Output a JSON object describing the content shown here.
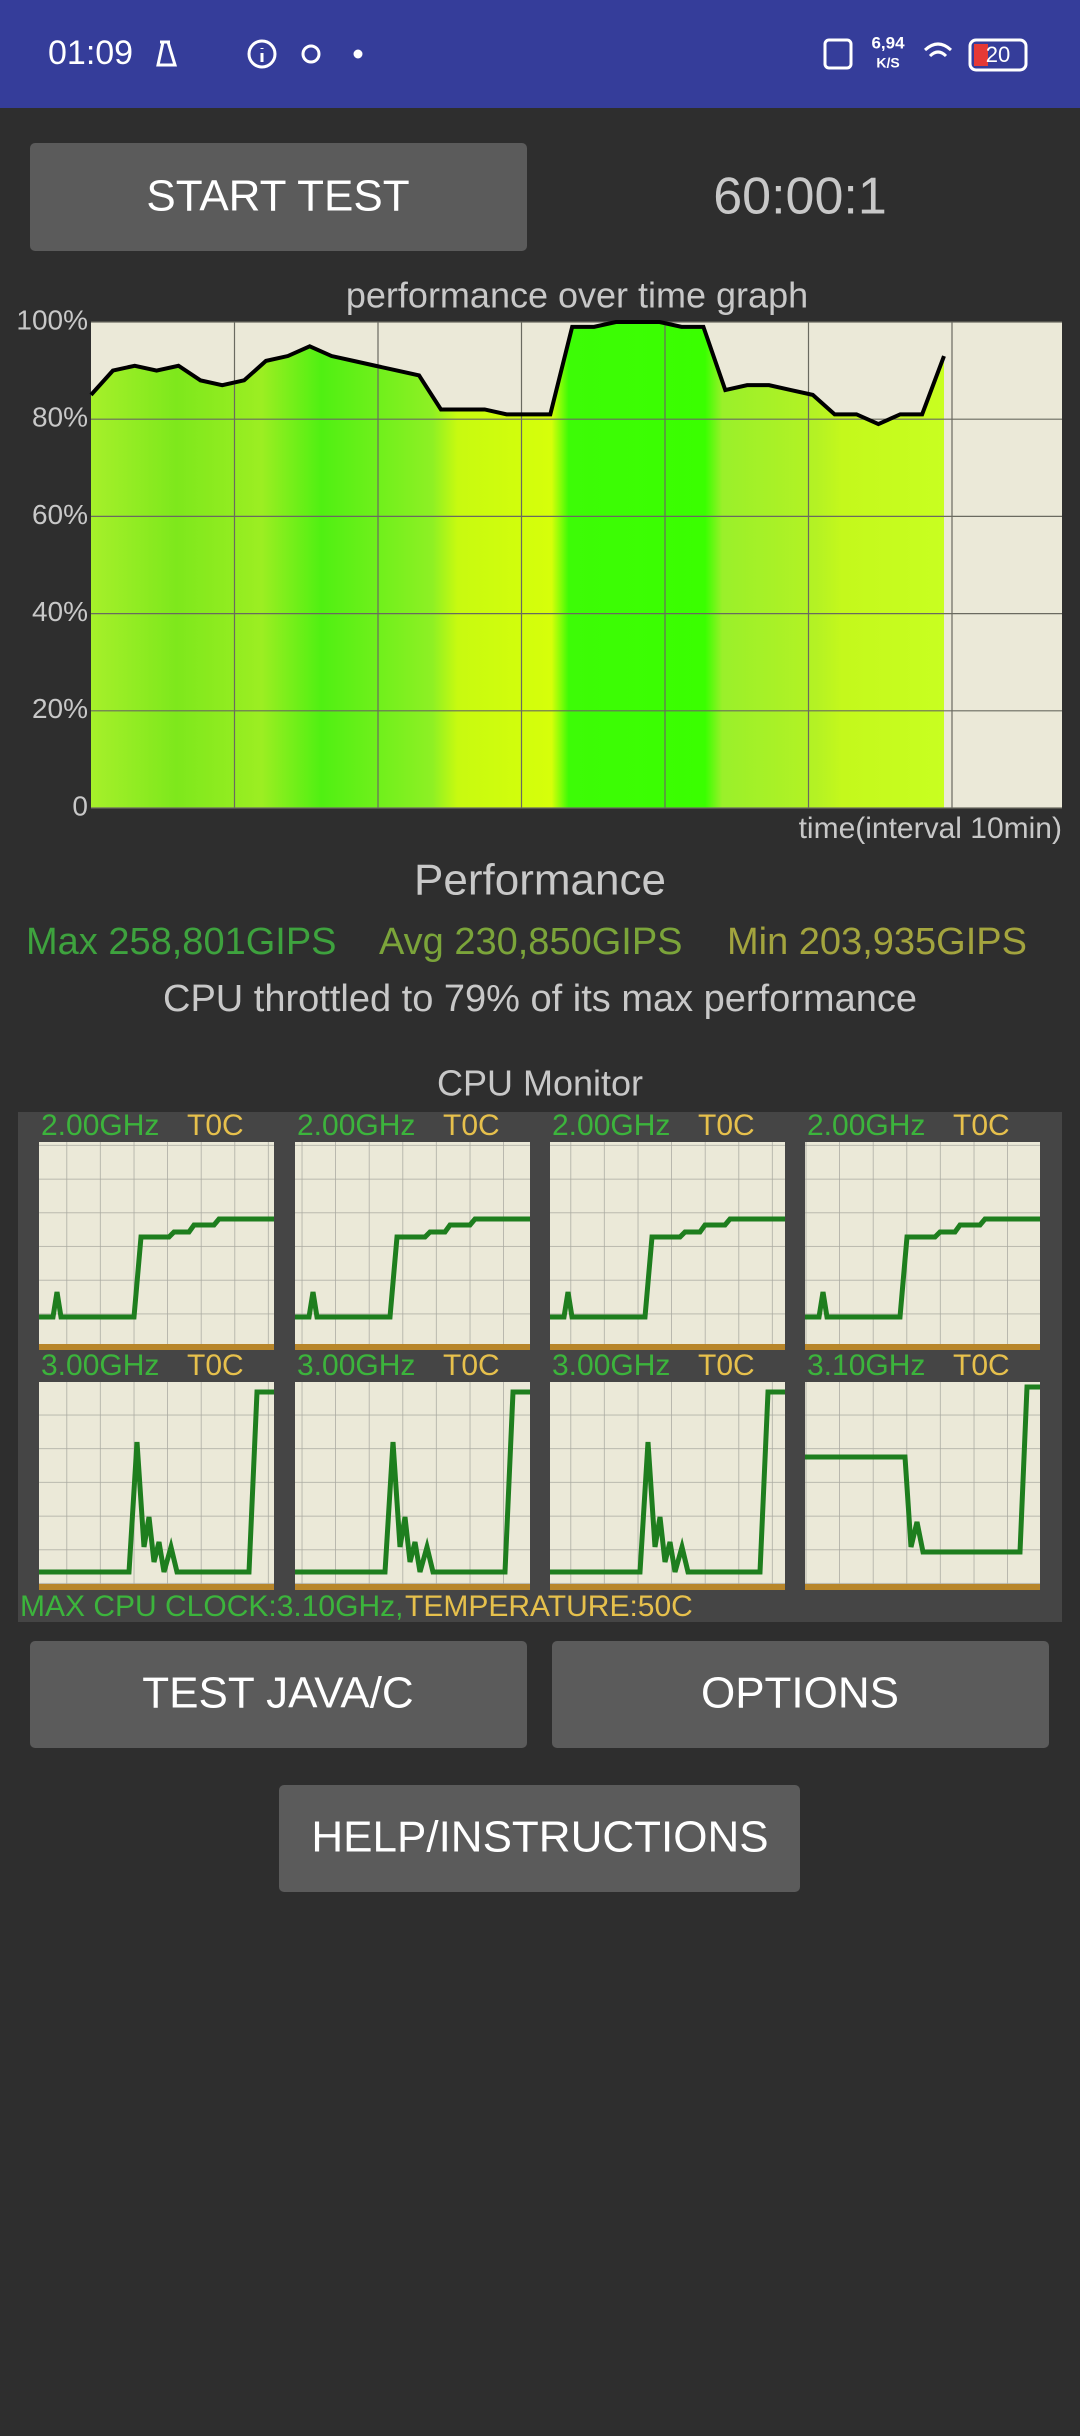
{
  "status_bar": {
    "time": "01:09",
    "net_speed": "6,94",
    "net_unit": "K/S",
    "battery": "20"
  },
  "start_button": "START TEST",
  "timer": "60:00:1",
  "performance_graph": {
    "title": "performance over time graph",
    "ylim": [
      0,
      100
    ],
    "yticks": [
      {
        "value": 100,
        "label": "100%"
      },
      {
        "value": 80,
        "label": "80%"
      },
      {
        "value": 60,
        "label": "60%"
      },
      {
        "value": 40,
        "label": "40%"
      },
      {
        "value": 20,
        "label": "20%"
      },
      0
    ],
    "x_label": "time(interval 10min)",
    "values": [
      85,
      90,
      91,
      90,
      91,
      88,
      87,
      88,
      92,
      93,
      95,
      93,
      92,
      91,
      90,
      89,
      82,
      82,
      82,
      81,
      81,
      81,
      99,
      99,
      100,
      100,
      100,
      99,
      99,
      86,
      87,
      87,
      86,
      85,
      81,
      81,
      79,
      81,
      81,
      93
    ]
  },
  "performance": {
    "title": "Performance",
    "max": "Max 258,801GIPS",
    "avg": "Avg 230,850GIPS",
    "min": "Min 203,935GIPS",
    "throttle": "CPU throttled to 79% of its max performance"
  },
  "cpu_monitor": {
    "title": "CPU Monitor",
    "cores": [
      {
        "frequency": "2.00GHz",
        "temperature": "T0C"
      },
      {
        "frequency": "2.00GHz",
        "temperature": "T0C"
      },
      {
        "frequency": "2.00GHz",
        "temperature": "T0C"
      },
      {
        "frequency": "2.00GHz",
        "temperature": "T0C"
      },
      {
        "frequency": "3.00GHz",
        "temperature": "T0C"
      },
      {
        "frequency": "3.00GHz",
        "temperature": "T0C"
      },
      {
        "frequency": "3.00GHz",
        "temperature": "T0C"
      },
      {
        "frequency": "3.10GHz",
        "temperature": "T0C"
      }
    ],
    "max_clock": "MAX CPU CLOCK:3.10GHz,",
    "temperature": "TEMPERATURE:50C"
  },
  "buttons": [
    "TEST JAVA/C",
    "OPTIONS",
    "HELP/INSTRUCTIONS"
  ]
}
